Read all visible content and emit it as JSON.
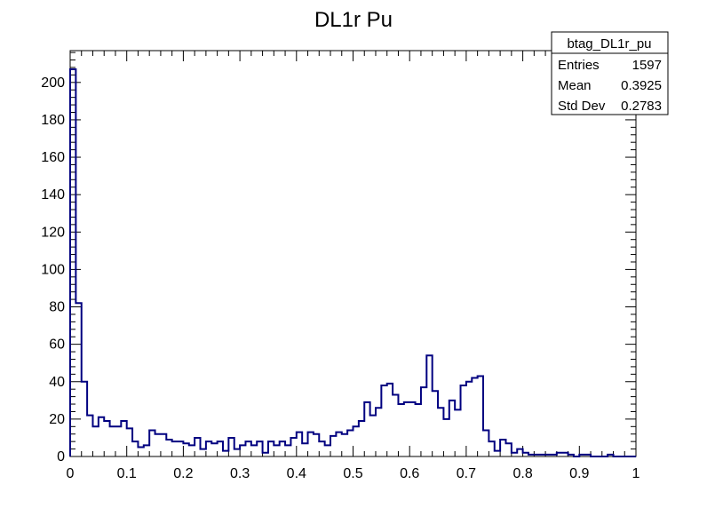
{
  "chart_data": {
    "type": "bar",
    "subtype": "histogram-step",
    "title": "DL1r Pu",
    "xlabel": "",
    "ylabel": "",
    "xlim": [
      0,
      1
    ],
    "ylim": [
      0,
      217
    ],
    "x_ticks": [
      0,
      0.1,
      0.2,
      0.3,
      0.4,
      0.5,
      0.6,
      0.7,
      0.8,
      0.9,
      1
    ],
    "x_tick_labels": [
      "0",
      "0.1",
      "0.2",
      "0.3",
      "0.4",
      "0.5",
      "0.6",
      "0.7",
      "0.8",
      "0.9",
      "1"
    ],
    "y_ticks": [
      0,
      20,
      40,
      60,
      80,
      100,
      120,
      140,
      160,
      180,
      200
    ],
    "y_tick_labels": [
      "0",
      "20",
      "40",
      "60",
      "80",
      "100",
      "120",
      "140",
      "160",
      "180",
      "200"
    ],
    "grid": false,
    "line_color": "#000080",
    "bin_width": 0.01,
    "values": [
      207,
      82,
      40,
      22,
      16,
      21,
      19,
      16,
      16,
      19,
      15,
      8,
      5,
      6,
      14,
      12,
      12,
      9,
      8,
      8,
      7,
      6,
      10,
      4,
      8,
      7,
      8,
      3,
      10,
      4,
      6,
      8,
      6,
      8,
      2,
      8,
      6,
      8,
      6,
      10,
      13,
      7,
      13,
      12,
      8,
      6,
      11,
      13,
      12,
      14,
      16,
      19,
      29,
      22,
      26,
      38,
      39,
      33,
      28,
      29,
      29,
      28,
      37,
      54,
      35,
      26,
      20,
      30,
      25,
      38,
      40,
      42,
      43,
      14,
      8,
      3,
      9,
      7,
      2,
      4,
      2,
      1,
      1,
      1,
      1,
      1,
      2,
      2,
      1,
      0,
      1,
      1,
      0,
      0,
      0,
      1,
      0,
      0,
      0,
      0
    ],
    "stats_box": {
      "name": "btag_DL1r_pu",
      "rows": [
        {
          "label": "Entries",
          "value": "1597"
        },
        {
          "label": "Mean",
          "value": "0.3925"
        },
        {
          "label": "Std Dev",
          "value": "0.2783"
        }
      ]
    }
  }
}
